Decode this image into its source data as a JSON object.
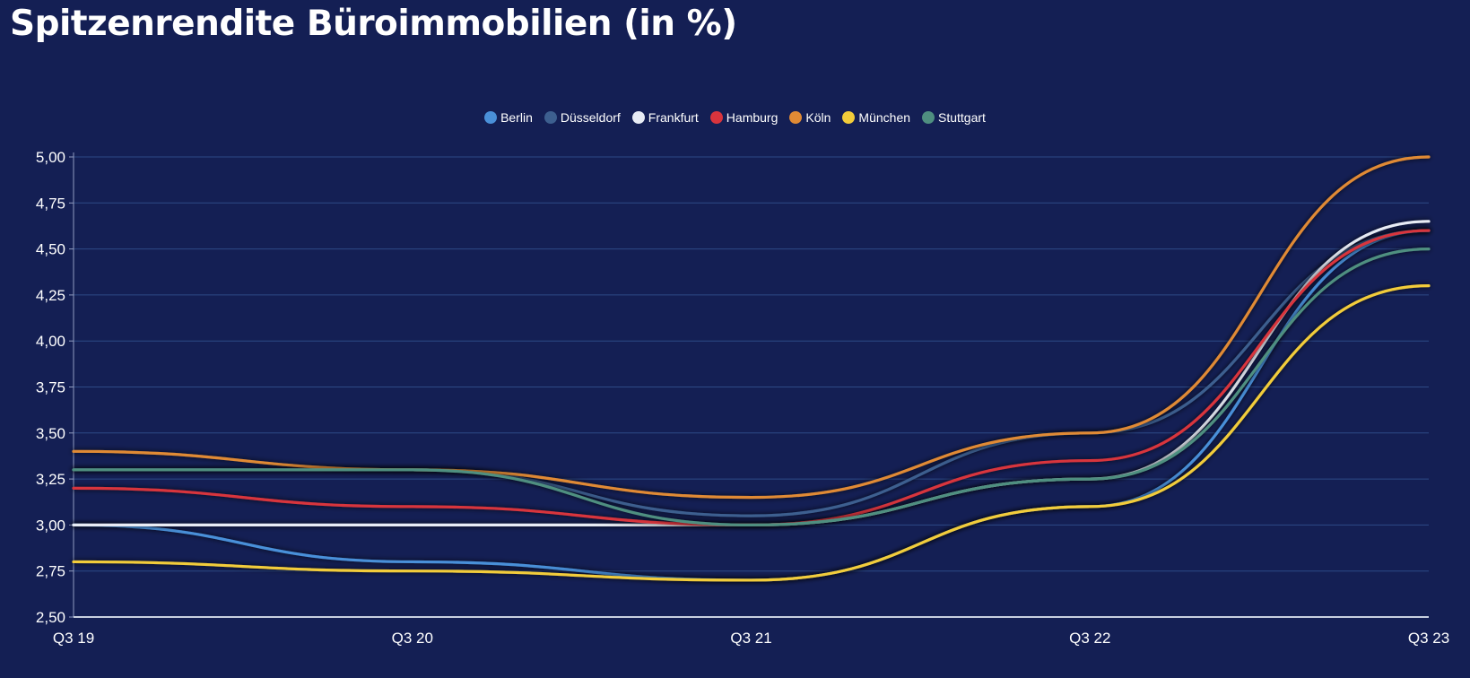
{
  "title": "Spitzenrendite Büroimmobilien (in %)",
  "chart_data": {
    "type": "line",
    "title": "Spitzenrendite Büroimmobilien (in %)",
    "categories": [
      "Q3 19",
      "Q3 20",
      "Q3 21",
      "Q3 22",
      "Q3 23"
    ],
    "ylim": [
      2.5,
      5.0
    ],
    "yticks": [
      "2,50",
      "2,75",
      "3,00",
      "3,25",
      "3,50",
      "3,75",
      "4,00",
      "4,25",
      "4,50",
      "4,75",
      "5,00"
    ],
    "grid": true,
    "legend_position": "top-center",
    "series": [
      {
        "name": "Berlin",
        "color": "#4a90d9",
        "values": [
          3.0,
          2.8,
          2.7,
          3.1,
          4.6
        ]
      },
      {
        "name": "Düsseldorf",
        "color": "#3d5f8f",
        "values": [
          3.3,
          3.3,
          3.05,
          3.5,
          4.6
        ]
      },
      {
        "name": "Frankfurt",
        "color": "#e8ecf5",
        "values": [
          3.0,
          3.0,
          3.0,
          3.25,
          4.65
        ]
      },
      {
        "name": "Hamburg",
        "color": "#d8343d",
        "values": [
          3.2,
          3.1,
          3.0,
          3.35,
          4.6
        ]
      },
      {
        "name": "Köln",
        "color": "#e08a35",
        "values": [
          3.4,
          3.3,
          3.15,
          3.5,
          5.0
        ]
      },
      {
        "name": "München",
        "color": "#f2cc3a",
        "values": [
          2.8,
          2.75,
          2.7,
          3.1,
          4.3
        ]
      },
      {
        "name": "Stuttgart",
        "color": "#4f8f80",
        "values": [
          3.3,
          3.3,
          3.0,
          3.25,
          4.5
        ]
      }
    ]
  }
}
